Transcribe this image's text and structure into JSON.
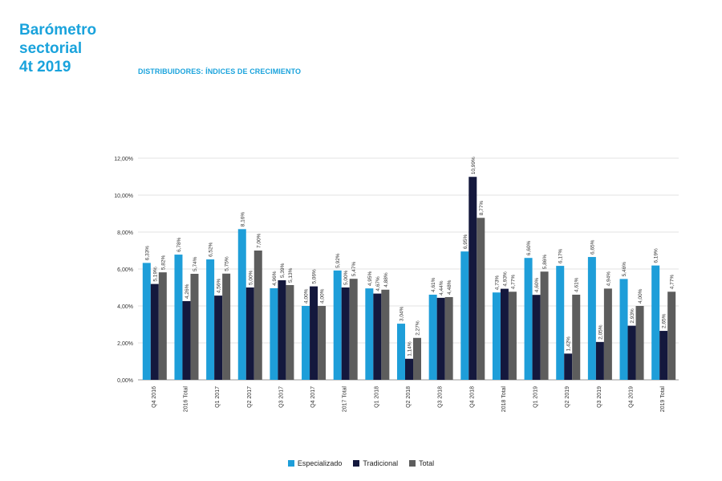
{
  "header": {
    "title_lines": [
      "Barómetro",
      "sectorial",
      "4t 2019"
    ],
    "subtitle": "DISTRIBUIDORES: ÍNDICES DE CRECIMIENTO"
  },
  "colors": {
    "Especializado": "#1e9ed9",
    "Tradicional": "#14183d",
    "Total": "#5d5d5d",
    "brand": "#1aa3dc"
  },
  "chart_data": {
    "type": "bar",
    "categories": [
      "Q4 2016",
      "2016 Total",
      "Q1 2017",
      "Q2 2017",
      "Q3 2017",
      "Q4 2017",
      "2017 Total",
      "Q1 2018",
      "Q2 2018",
      "Q3 2018",
      "Q4 2018",
      "2018 Total",
      "Q1 2019",
      "Q2 2019",
      "Q3 2019",
      "Q4 2019",
      "2019 Total"
    ],
    "series": [
      {
        "name": "Especializado",
        "values": [
          6.33,
          6.78,
          6.52,
          8.16,
          4.96,
          4.0,
          5.92,
          4.95,
          3.04,
          4.61,
          6.95,
          4.73,
          6.6,
          6.17,
          6.65,
          5.46,
          6.19
        ]
      },
      {
        "name": "Tradicional",
        "values": [
          5.19,
          4.26,
          4.56,
          5.0,
          5.39,
          5.06,
          5.0,
          4.67,
          1.14,
          4.44,
          10.99,
          4.93,
          4.6,
          1.42,
          2.05,
          2.93,
          2.65
        ]
      },
      {
        "name": "Total",
        "values": [
          5.82,
          5.74,
          5.75,
          7.0,
          5.13,
          4.0,
          5.47,
          4.88,
          2.27,
          4.48,
          8.77,
          4.77,
          5.86,
          4.61,
          4.94,
          4.0,
          4.77
        ]
      }
    ],
    "value_labels": [
      [
        "6,33%",
        "6,78%",
        "6,52%",
        "8,16%",
        "4,96%",
        "4,00%",
        "5,92%",
        "4,95%",
        "3,04%",
        "4,61%",
        "6,95%",
        "4,73%",
        "6,60%",
        "6,17%",
        "6,65%",
        "5,46%",
        "6,19%"
      ],
      [
        "5,19%",
        "4,26%",
        "4,56%",
        "5,00%",
        "5,39%",
        "5,06%",
        "5,00%",
        "4,67%",
        "1,14%",
        "4,44%",
        "10,99%",
        "4,93%",
        "4,60%",
        "1,42%",
        "2,05%",
        "2,93%",
        "2,65%"
      ],
      [
        "5,82%",
        "5,74%",
        "5,75%",
        "7,00%",
        "5,13%",
        "4,00%",
        "5,47%",
        "4,88%",
        "2,27%",
        "4,48%",
        "8,77%",
        "4,77%",
        "5,86%",
        "4,61%",
        "4,94%",
        "4,00%",
        "4,77%"
      ]
    ],
    "yticks": [
      "0,00%",
      "2,00%",
      "4,00%",
      "6,00%",
      "8,00%",
      "10,00%",
      "12,00%"
    ],
    "ylim": [
      0,
      12
    ],
    "grid": true,
    "legend": "bottom-center"
  }
}
